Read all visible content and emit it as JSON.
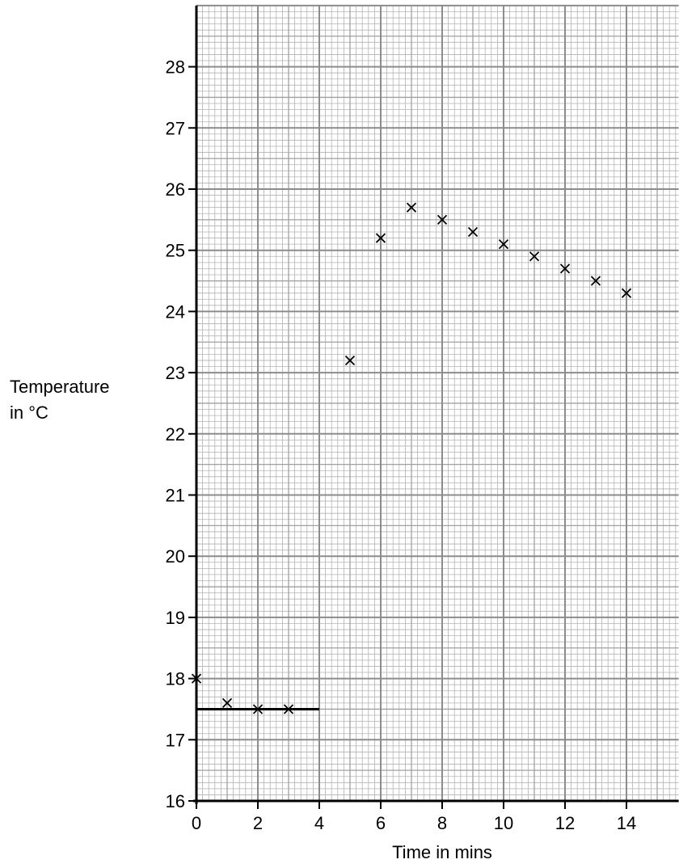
{
  "chart_data": {
    "type": "scatter",
    "xlabel": "Time in mins",
    "ylabel_lines": [
      "Temperature",
      "in °C"
    ],
    "xlim": [
      0,
      15.7
    ],
    "ylim": [
      16,
      29
    ],
    "x_ticks": [
      0,
      2,
      4,
      6,
      8,
      10,
      12,
      14
    ],
    "y_ticks": [
      16,
      17,
      18,
      19,
      20,
      21,
      22,
      23,
      24,
      25,
      26,
      27,
      28
    ],
    "grid": true,
    "marker": "cross",
    "points": [
      {
        "x": 0,
        "y": 18.0
      },
      {
        "x": 1,
        "y": 17.6
      },
      {
        "x": 2,
        "y": 17.5
      },
      {
        "x": 3,
        "y": 17.5
      },
      {
        "x": 5,
        "y": 23.2
      },
      {
        "x": 6,
        "y": 25.2
      },
      {
        "x": 7,
        "y": 25.7
      },
      {
        "x": 8,
        "y": 25.5
      },
      {
        "x": 9,
        "y": 25.3
      },
      {
        "x": 10,
        "y": 25.1
      },
      {
        "x": 11,
        "y": 24.9
      },
      {
        "x": 12,
        "y": 24.7
      },
      {
        "x": 13,
        "y": 24.5
      },
      {
        "x": 14,
        "y": 24.3
      }
    ],
    "lines": [
      {
        "x": [
          0,
          4
        ],
        "y": [
          17.5,
          17.5
        ]
      }
    ]
  }
}
